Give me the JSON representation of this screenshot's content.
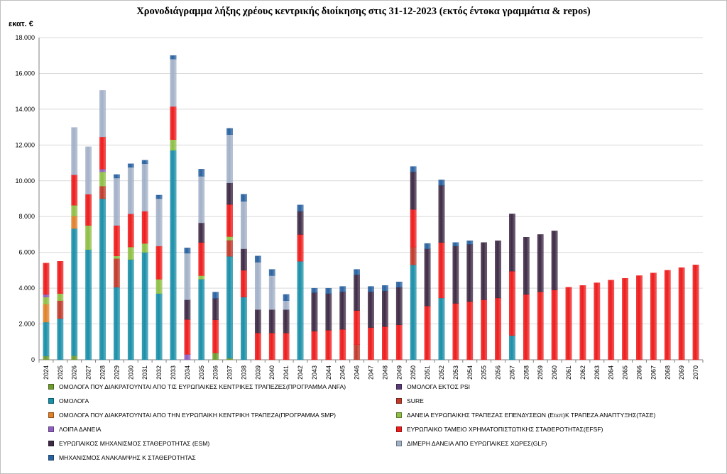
{
  "chart_data": {
    "type": "bar",
    "stacked": true,
    "title": "Χρονοδιάγραμμα λήξης χρέους  κεντρικής διοίκησης στις 31-12-2023 (εκτός έντοκα γραμμάτια & repos)",
    "ylabel": "εκατ. €",
    "xlabel": "",
    "ylim": [
      0,
      18000
    ],
    "yticks": [
      "0",
      "2.000",
      "4.000",
      "6.000",
      "8.000",
      "10.000",
      "12.000",
      "14.000",
      "16.000",
      "18.000"
    ],
    "grid": true,
    "legend_position": "bottom",
    "categories": [
      "2024",
      "2025",
      "2026",
      "2027",
      "2028",
      "2029",
      "2030",
      "2031",
      "2032",
      "2033",
      "2034",
      "2035",
      "2036",
      "2037",
      "2038",
      "2039",
      "2040",
      "2041",
      "2042",
      "2043",
      "2044",
      "2045",
      "2046",
      "2047",
      "2048",
      "2049",
      "2050",
      "2051",
      "2052",
      "2053",
      "2054",
      "2055",
      "2056",
      "2057",
      "2058",
      "2059",
      "2060",
      "2061",
      "2062",
      "2063",
      "2064",
      "2065",
      "2066",
      "2067",
      "2068",
      "2069",
      "2070"
    ],
    "series": [
      {
        "name": "ΟΜΟΛΟΓΑ ΠΟΥ ΔΙΑΚΡΑΤΟΥΝΤΑΙ ΑΠΟ ΤΙΣ ΕΥΡΩΠΑΙΚΕΣ ΚΕΝΤΡΙΚΕΣ ΤΡΑΠΕΖΕΣ(ΠΡΟΓΡΑΜΜΑ ANFA)",
        "color": "#6e9a2e",
        "values": [
          200,
          0,
          230,
          0,
          0,
          0,
          0,
          0,
          0,
          0,
          0,
          0,
          380,
          80,
          0,
          0,
          0,
          0,
          0,
          0,
          0,
          0,
          0,
          0,
          0,
          0,
          0,
          0,
          0,
          0,
          0,
          0,
          0,
          0,
          0,
          0,
          0,
          0,
          0,
          0,
          0,
          0,
          0,
          0,
          0,
          0,
          0
        ]
      },
      {
        "name": "ΟΜΟΛΟΓΑ ΕΚΤΟΣ PSI",
        "color": "#5b3b75",
        "values": [
          0,
          0,
          0,
          0,
          0,
          0,
          0,
          0,
          0,
          0,
          0,
          0,
          0,
          0,
          0,
          0,
          0,
          0,
          0,
          0,
          0,
          0,
          0,
          0,
          0,
          0,
          0,
          0,
          0,
          0,
          0,
          0,
          0,
          0,
          0,
          0,
          0,
          0,
          0,
          0,
          0,
          0,
          0,
          0,
          0,
          0,
          0
        ]
      },
      {
        "name": "ΟΜΟΛΟΓΑ",
        "color": "#1a8fa8",
        "values": [
          1900,
          2300,
          7100,
          6150,
          9000,
          4050,
          5600,
          6000,
          3700,
          11700,
          0,
          4500,
          0,
          5700,
          3500,
          0,
          0,
          0,
          5500,
          0,
          0,
          0,
          0,
          0,
          0,
          0,
          5300,
          0,
          3450,
          0,
          0,
          0,
          0,
          1350,
          0,
          0,
          0,
          0,
          0,
          0,
          0,
          0,
          0,
          0,
          0,
          0,
          0
        ]
      },
      {
        "name": "SURE",
        "color": "#c0392b",
        "values": [
          0,
          1000,
          0,
          0,
          700,
          1600,
          0,
          0,
          0,
          0,
          0,
          0,
          0,
          900,
          0,
          0,
          0,
          0,
          0,
          0,
          0,
          0,
          850,
          0,
          0,
          0,
          1000,
          0,
          0,
          0,
          0,
          0,
          0,
          0,
          0,
          0,
          0,
          0,
          0,
          0,
          0,
          0,
          0,
          0,
          0,
          0,
          0
        ]
      },
      {
        "name": "ΟΜΟΛΟΓΑ ΠΟΥ ΔΙΑΚΡΑΤΟΥΝΤΑΙ ΑΠΟ ΤΗΝ ΕΥΡΩΠΑΙΚΗ ΚΕΝΤΡΙΚΗ ΤΡΑΠΕΖΑ(ΠΡΟΓΡΑΜΜΑ SMP)",
        "color": "#e0802a",
        "values": [
          1000,
          0,
          700,
          0,
          0,
          0,
          0,
          0,
          0,
          0,
          0,
          0,
          0,
          0,
          0,
          0,
          0,
          0,
          0,
          0,
          0,
          0,
          0,
          0,
          0,
          0,
          0,
          0,
          0,
          0,
          0,
          0,
          0,
          0,
          0,
          0,
          0,
          0,
          0,
          0,
          0,
          0,
          0,
          0,
          0,
          0,
          0
        ]
      },
      {
        "name": "ΔΑΝΕΙΑ ΕΥΡΩΠΑΙΚΗΣ ΤΡΑΠΕΖΑΣ ΕΠΕΝΔΥΣΕΩΝ (Ετεπ)Κ ΤΡΑΠΕΖΑ ΑΝΑΠΤΥΞΗΣ(ΤΑΣΕ)",
        "color": "#8fbf45",
        "values": [
          400,
          400,
          600,
          1350,
          800,
          150,
          700,
          500,
          800,
          600,
          0,
          200,
          0,
          200,
          0,
          0,
          0,
          0,
          0,
          0,
          0,
          0,
          0,
          0,
          0,
          0,
          0,
          0,
          0,
          0,
          0,
          0,
          0,
          0,
          0,
          0,
          0,
          0,
          0,
          0,
          0,
          0,
          0,
          0,
          0,
          0,
          0
        ]
      },
      {
        "name": "ΛΟΙΠΑ ΔΑΝΕΙΑ",
        "color": "#8e5fbf",
        "values": [
          150,
          0,
          0,
          0,
          150,
          0,
          0,
          0,
          0,
          0,
          300,
          0,
          0,
          0,
          0,
          0,
          0,
          0,
          0,
          0,
          0,
          0,
          0,
          0,
          0,
          0,
          0,
          0,
          0,
          0,
          0,
          0,
          0,
          0,
          0,
          0,
          0,
          0,
          0,
          0,
          0,
          0,
          0,
          0,
          0,
          0,
          0
        ]
      },
      {
        "name": "ΕΥΡΩΠΑΙΚΟ ΤΑΜΕΙΟ ΧΡΗΜΑΤΟΠΙΣΤΩΤΙΚΗΣ ΣΤΑΘΕΡΟΤΗΤΑΣ(EFSF)",
        "color": "#ee1c1c",
        "values": [
          1750,
          1800,
          1700,
          1750,
          1800,
          1700,
          1850,
          1800,
          1850,
          1850,
          1950,
          1850,
          1850,
          1800,
          1500,
          1500,
          1500,
          1500,
          1500,
          1600,
          1650,
          1700,
          1900,
          1800,
          1850,
          1950,
          2100,
          3000,
          3100,
          3150,
          3250,
          3350,
          3450,
          3600,
          3650,
          3800,
          3900,
          4050,
          4150,
          4300,
          4450,
          4550,
          4700,
          4850,
          5000,
          5150,
          5300
        ]
      },
      {
        "name": "ΕΥΡΩΠΑΙΚΟΣ ΜΗΧΑΝΙΣΜΟΣ ΣΤΑΘΕΡΟΤΗΤΑΣ (ESM)",
        "color": "#3e2a45",
        "values": [
          0,
          0,
          0,
          0,
          0,
          0,
          0,
          0,
          0,
          0,
          1100,
          1100,
          1200,
          1200,
          1200,
          1300,
          1300,
          1300,
          1300,
          2150,
          2050,
          2100,
          2000,
          2000,
          2000,
          2100,
          2100,
          3200,
          3200,
          3200,
          3200,
          3200,
          3200,
          3200,
          3200,
          3200,
          3300,
          0,
          0,
          0,
          0,
          0,
          0,
          0,
          0,
          0,
          0
        ]
      },
      {
        "name": "ΔΙΜΕΡΗ ΔΑΝΕΙΑ ΑΠΟ ΕΥΡΩΠΑΙΚΕΣ ΧΩΡΕΣ(GLF)",
        "color": "#a3b1c8",
        "values": [
          0,
          0,
          2650,
          2650,
          2600,
          2650,
          2600,
          2650,
          2650,
          2650,
          2600,
          2600,
          0,
          2700,
          2650,
          2650,
          1900,
          500,
          0,
          0,
          0,
          0,
          0,
          0,
          0,
          0,
          0,
          0,
          0,
          0,
          0,
          0,
          0,
          0,
          0,
          0,
          0,
          0,
          0,
          0,
          0,
          0,
          0,
          0,
          0,
          0,
          0
        ]
      },
      {
        "name": "ΜΗΧΑΝΙΣΜΟΣ ΑΝΑΚΑΜΨΗΣ Κ ΣΤΑΘΕΡΟΤΗΤΑΣ",
        "color": "#2a62a0",
        "values": [
          0,
          0,
          0,
          0,
          0,
          200,
          200,
          200,
          200,
          200,
          300,
          400,
          350,
          350,
          400,
          350,
          350,
          350,
          350,
          250,
          300,
          300,
          300,
          300,
          300,
          300,
          300,
          300,
          300,
          200,
          200,
          0,
          0,
          0,
          0,
          0,
          0,
          0,
          0,
          0,
          0,
          0,
          0,
          0,
          0,
          0,
          0
        ]
      }
    ]
  }
}
